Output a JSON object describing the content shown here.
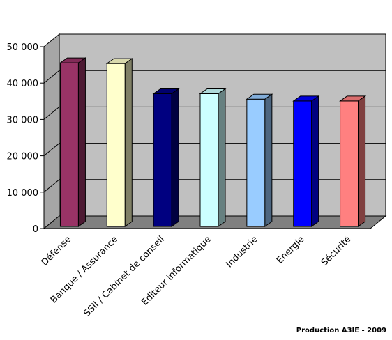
{
  "chart_data": {
    "type": "bar",
    "title": "",
    "xlabel": "",
    "ylabel": "",
    "categories": [
      "Défense",
      "Banque / Assurance",
      "SSII / Cabinet de conseil",
      "Editeur informatique",
      "Industrie",
      "Energie",
      "Sécurité"
    ],
    "values": [
      45000,
      44800,
      36500,
      36500,
      35000,
      34500,
      34500
    ],
    "colors": [
      "#993366",
      "#ffffcc",
      "#000080",
      "#ccffff",
      "#99ccff",
      "#0000ff",
      "#ff8080"
    ],
    "ylim": [
      0,
      50000
    ],
    "y_ticks": [
      0,
      10000,
      20000,
      30000,
      40000,
      50000
    ],
    "y_tick_labels": [
      "0",
      "10 000",
      "20 000",
      "30 000",
      "40 000",
      "50 000"
    ],
    "grid": true,
    "legend": "none",
    "plot_background": "#c0c0c0"
  },
  "credit": "Production A3IE - 2009"
}
